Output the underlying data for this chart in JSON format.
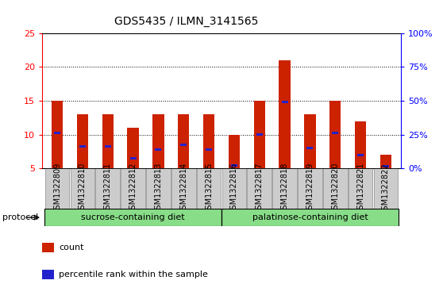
{
  "title": "GDS5435 / ILMN_3141565",
  "samples": [
    "GSM1322809",
    "GSM1322810",
    "GSM1322811",
    "GSM1322812",
    "GSM1322813",
    "GSM1322814",
    "GSM1322815",
    "GSM1322816",
    "GSM1322817",
    "GSM1322818",
    "GSM1322819",
    "GSM1322820",
    "GSM1322821",
    "GSM1322822"
  ],
  "count_values": [
    15.0,
    13.0,
    13.0,
    11.0,
    13.0,
    13.0,
    13.0,
    10.0,
    15.0,
    21.0,
    13.0,
    15.0,
    12.0,
    7.0
  ],
  "percentile_values": [
    10.3,
    8.3,
    8.3,
    6.5,
    7.8,
    8.5,
    7.8,
    5.5,
    10.0,
    14.8,
    8.0,
    10.3,
    7.0,
    5.3
  ],
  "bar_color": "#cc2200",
  "blue_color": "#2222cc",
  "ylim_left": [
    5,
    25
  ],
  "ylim_right": [
    0,
    100
  ],
  "yticks_left": [
    5,
    10,
    15,
    20,
    25
  ],
  "yticks_right": [
    0,
    25,
    50,
    75,
    100
  ],
  "ytick_labels_right": [
    "0%",
    "25%",
    "50%",
    "75%",
    "100%"
  ],
  "grid_lines": [
    10,
    15,
    20
  ],
  "protocol_groups": [
    {
      "label": "sucrose-containing diet",
      "start": 0,
      "end": 6
    },
    {
      "label": "palatinose-containing diet",
      "start": 7,
      "end": 13
    }
  ],
  "protocol_label": "protocol",
  "protocol_bg": "#88dd88",
  "bar_bg": "#cccccc",
  "legend_items": [
    "count",
    "percentile rank within the sample"
  ],
  "bar_width": 0.45,
  "title_fontsize": 10,
  "tick_fontsize": 8,
  "label_fontsize": 7
}
